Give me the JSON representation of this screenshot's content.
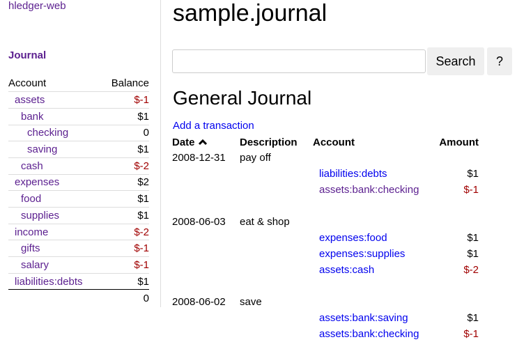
{
  "sidebar": {
    "app_link": "hledger-web",
    "journal_link": "Journal",
    "headers": {
      "account": "Account",
      "balance": "Balance"
    },
    "accounts": [
      {
        "name": "assets",
        "balance": "$-1",
        "depth": 0,
        "neg": true
      },
      {
        "name": "bank",
        "balance": "$1",
        "depth": 1,
        "neg": false
      },
      {
        "name": "checking",
        "balance": "0",
        "depth": 2,
        "neg": false
      },
      {
        "name": "saving",
        "balance": "$1",
        "depth": 2,
        "neg": false
      },
      {
        "name": "cash",
        "balance": "$-2",
        "depth": 1,
        "neg": true
      },
      {
        "name": "expenses",
        "balance": "$2",
        "depth": 0,
        "neg": false
      },
      {
        "name": "food",
        "balance": "$1",
        "depth": 1,
        "neg": false
      },
      {
        "name": "supplies",
        "balance": "$1",
        "depth": 1,
        "neg": false
      },
      {
        "name": "income",
        "balance": "$-2",
        "depth": 0,
        "neg": true
      },
      {
        "name": "gifts",
        "balance": "$-1",
        "depth": 1,
        "neg": true
      },
      {
        "name": "salary",
        "balance": "$-1",
        "depth": 1,
        "neg": true
      },
      {
        "name": "liabilities:debts",
        "balance": "$1",
        "depth": 0,
        "neg": false
      }
    ],
    "total": "0"
  },
  "main": {
    "title": "sample.journal",
    "search": {
      "value": "",
      "button": "Search",
      "help": "?"
    },
    "journal_title": "General Journal",
    "add_transaction": "Add a transaction",
    "headers": {
      "date": "Date",
      "sort_icon": "chevron-up",
      "description": "Description",
      "account": "Account",
      "amount": "Amount"
    },
    "transactions": [
      {
        "date": "2008-12-31",
        "description": "pay off",
        "postings": [
          {
            "account": "liabilities:debts",
            "amount": "$1",
            "visited": false
          },
          {
            "account": "assets:bank:checking",
            "amount": "$-1",
            "visited": true
          }
        ]
      },
      {
        "date": "2008-06-03",
        "description": "eat & shop",
        "postings": [
          {
            "account": "expenses:food",
            "amount": "$1",
            "visited": false
          },
          {
            "account": "expenses:supplies",
            "amount": "$1",
            "visited": false
          },
          {
            "account": "assets:cash",
            "amount": "$-2",
            "visited": false
          }
        ]
      },
      {
        "date": "2008-06-02",
        "description": "save",
        "postings": [
          {
            "account": "assets:bank:saving",
            "amount": "$1",
            "visited": false
          },
          {
            "account": "assets:bank:checking",
            "amount": "$-1",
            "visited": false
          }
        ]
      }
    ]
  },
  "colors": {
    "visited_link": "#5b1f8f",
    "link": "#0000ee",
    "negative": "#a00000"
  }
}
